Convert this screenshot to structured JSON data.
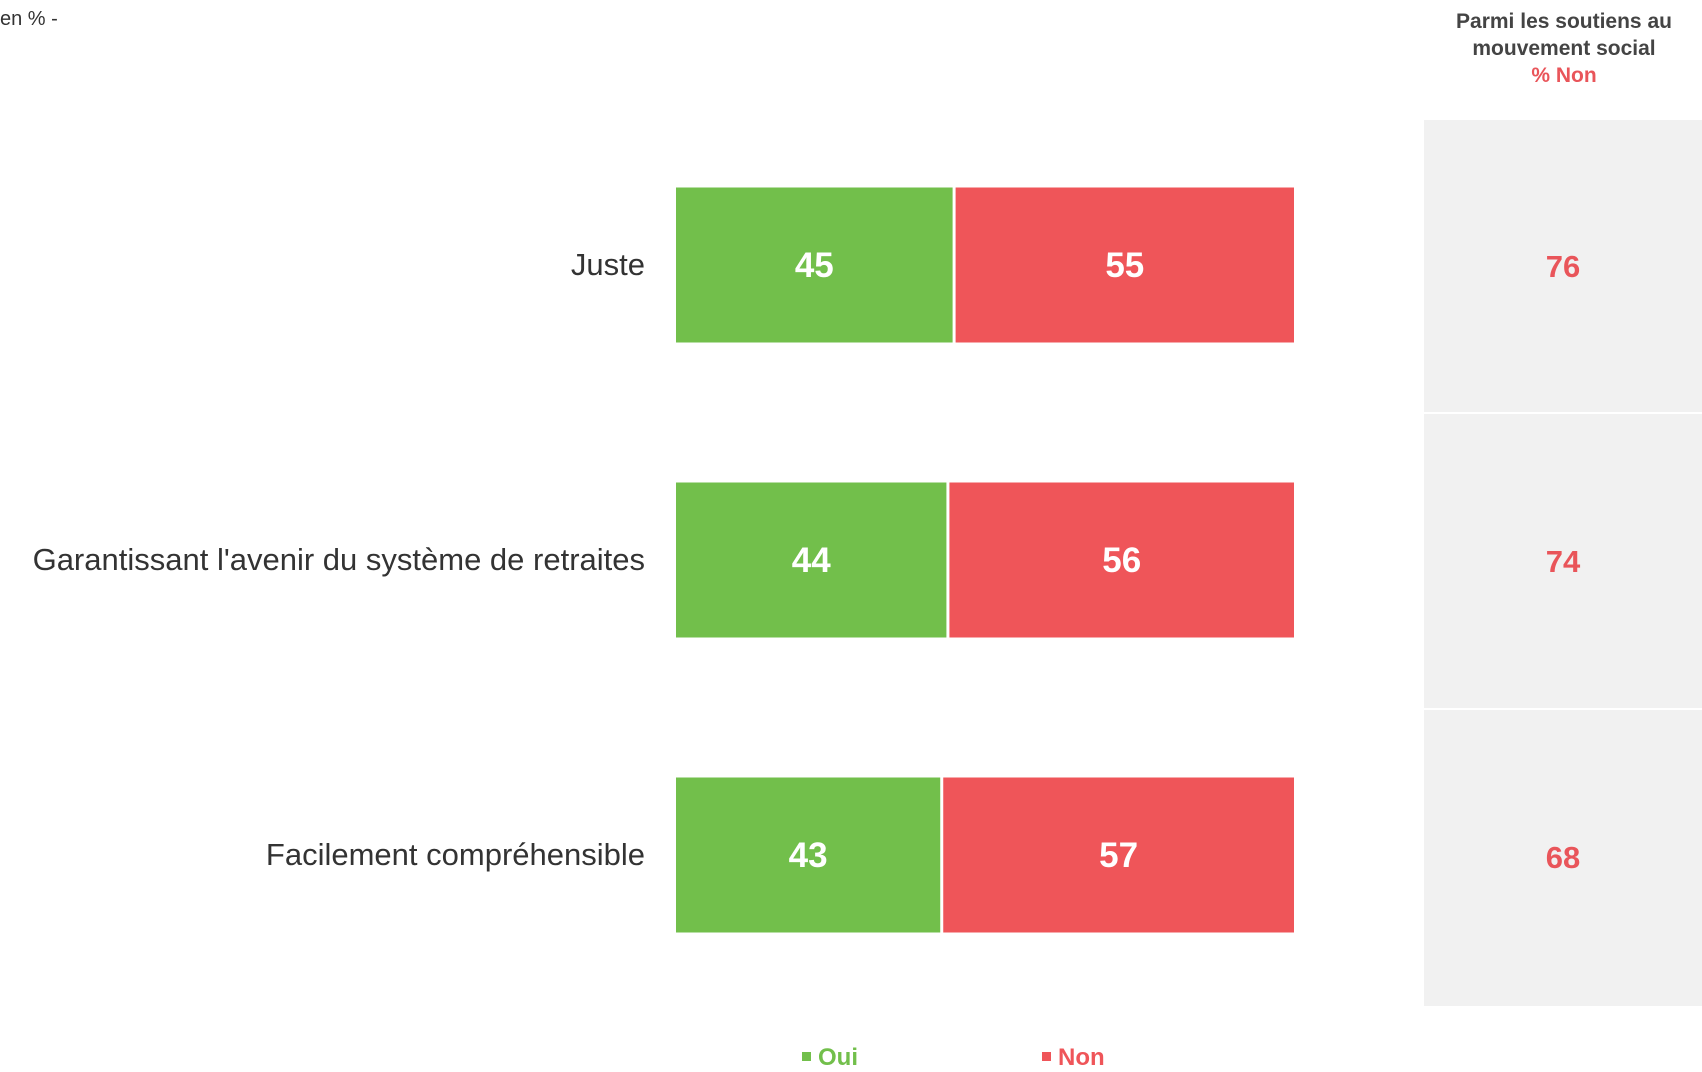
{
  "unit_note": "en % -",
  "side_panel": {
    "header_lines": [
      "Parmi les soutiens au",
      "mouvement social"
    ],
    "metric_label": "% Non",
    "values": [
      "76",
      "74",
      "68"
    ]
  },
  "legend": {
    "oui_label": "Oui",
    "non_label": "Non"
  },
  "colors": {
    "oui": "#72bf4b",
    "non": "#ef5559",
    "side_value": "#e9555a",
    "label_text": "#333333"
  },
  "chart_data": {
    "type": "bar",
    "orientation": "horizontal",
    "stacked": true,
    "categories": [
      "Juste",
      "Garantissant l'avenir du système de retraites",
      "Facilement compréhensible"
    ],
    "series": [
      {
        "name": "Oui",
        "values": [
          45,
          44,
          43
        ]
      },
      {
        "name": "Non",
        "values": [
          55,
          56,
          57
        ]
      }
    ],
    "xlim": [
      0,
      100
    ],
    "grid": false,
    "legend_position": "bottom"
  }
}
